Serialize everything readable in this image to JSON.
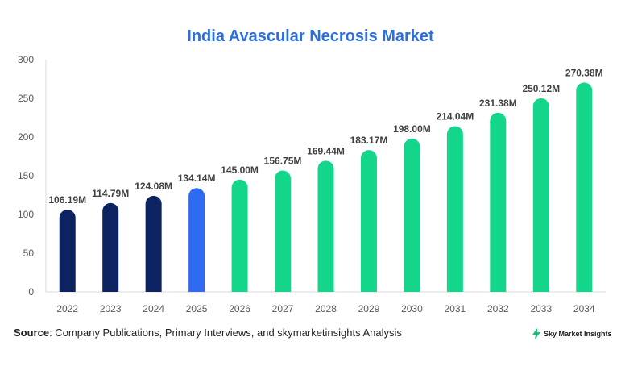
{
  "chart_data": {
    "type": "bar",
    "title": "India Avascular Necrosis Market",
    "categories": [
      "2022",
      "2023",
      "2024",
      "2025",
      "2026",
      "2027",
      "2028",
      "2029",
      "2030",
      "2031",
      "2032",
      "2033",
      "2034"
    ],
    "values": [
      106.19,
      114.79,
      124.08,
      134.14,
      145.0,
      156.75,
      169.44,
      183.17,
      198.0,
      214.04,
      231.38,
      250.12,
      270.38
    ],
    "data_labels": [
      "106.19M",
      "114.79M",
      "124.08M",
      "134.14M",
      "145.00M",
      "156.75M",
      "169.44M",
      "183.17M",
      "198.00M",
      "214.04M",
      "231.38M",
      "250.12M",
      "270.38M"
    ],
    "bar_colors": [
      "#0d2260",
      "#0d2260",
      "#0d2260",
      "#2f6bf0",
      "#14d68a",
      "#14d68a",
      "#14d68a",
      "#14d68a",
      "#14d68a",
      "#14d68a",
      "#14d68a",
      "#14d68a",
      "#14d68a"
    ],
    "ylim": [
      0,
      300
    ],
    "yticks": [
      "0",
      "50",
      "100",
      "150",
      "200",
      "250",
      "300"
    ],
    "grid": false,
    "legend": "none"
  },
  "footer": {
    "source_label": "Source",
    "source_text": ": Company Publications, Primary Interviews, and skymarketinsights Analysis",
    "brand_text": "Sky Market Insights",
    "brand_icon": "lightning-bolt-icon",
    "brand_color": "#14c27a"
  }
}
